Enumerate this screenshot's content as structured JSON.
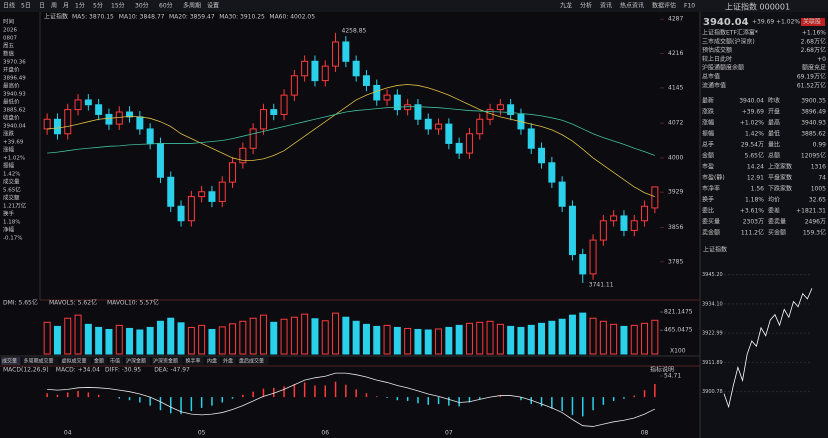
{
  "toolbar": {
    "tabs": [
      "日线",
      "5日",
      "日",
      "周",
      "月",
      "1分",
      "5分",
      "15分",
      "30分",
      "60分",
      "多周期",
      "设置"
    ],
    "right_tabs": [
      "九龙",
      "分析",
      "资讯",
      "热点资讯",
      "数据评估",
      "F10"
    ]
  },
  "left_info": {
    "items": [
      "时间",
      "2026",
      "0807",
      "周五",
      "数值",
      "3970.36",
      "开盘价",
      "3896.49",
      "最高价",
      "3940.93",
      "最低价",
      "3885.62",
      "收盘价",
      "3940.04",
      "涨跌",
      "+39.69",
      "涨幅",
      "+1.02%",
      "振幅",
      "1.42%",
      "成交量",
      "5.65亿",
      "成交额",
      "1.21万亿",
      "换手",
      "1.18%",
      "净幅",
      "-0.17%"
    ]
  },
  "chart_data": [
    {
      "type": "candlestick",
      "title": "上证指数",
      "legend": [
        "MA5: 3870.15",
        "MA10: 3848.77",
        "MA20: 3859.47",
        "MA30: 3910.25",
        "MA60: 4002.05"
      ],
      "annotations": [
        "4258.85",
        "3741.11"
      ],
      "categories": [
        null,
        null,
        "04",
        null,
        null,
        null,
        null,
        null,
        null,
        null,
        null,
        null,
        null,
        null,
        null,
        "05",
        null,
        null,
        null,
        null,
        null,
        null,
        null,
        null,
        null,
        null,
        null,
        "06",
        null,
        null,
        null,
        null,
        null,
        null,
        null,
        null,
        null,
        null,
        null,
        "07",
        null,
        null,
        null,
        null,
        null,
        null,
        null,
        null,
        null,
        null,
        null,
        null,
        null,
        null,
        null,
        null,
        null,
        null,
        "08",
        null
      ],
      "open": [
        4060,
        4080,
        4050,
        4100,
        4120,
        4110,
        4090,
        4070,
        4095,
        4085,
        4060,
        4030,
        3960,
        3900,
        3870,
        3920,
        3930,
        3910,
        3950,
        3990,
        4020,
        4060,
        4100,
        4090,
        4130,
        4170,
        4200,
        4160,
        4190,
        4240,
        4200,
        4170,
        4150,
        4120,
        4130,
        4100,
        4110,
        4080,
        4060,
        4070,
        4030,
        4010,
        4050,
        4080,
        4100,
        4110,
        4090,
        4060,
        4020,
        3990,
        3950,
        3900,
        3800,
        3760,
        3830,
        3870,
        3880,
        3850,
        3870,
        3896.49
      ],
      "high": [
        4092,
        4092,
        4112,
        4132,
        4132,
        4122,
        4102,
        4107,
        4107,
        4097,
        4072,
        4042,
        3972,
        3912,
        3932,
        3942,
        3942,
        3962,
        4002,
        4032,
        4072,
        4112,
        4112,
        4142,
        4182,
        4212,
        4212,
        4202,
        4258.85,
        4252,
        4212,
        4182,
        4162,
        4142,
        4142,
        4122,
        4122,
        4092,
        4082,
        4082,
        4042,
        4062,
        4092,
        4112,
        4122,
        4122,
        4102,
        4072,
        4032,
        4002,
        3962,
        3912,
        3812,
        3842,
        3882,
        3892,
        3892,
        3882,
        3912,
        3940.93
      ],
      "low": [
        4048,
        4038,
        4038,
        4088,
        4098,
        4078,
        4058,
        4058,
        4073,
        4048,
        4018,
        3948,
        3888,
        3858,
        3858,
        3908,
        3898,
        3898,
        3938,
        3978,
        4008,
        4048,
        4078,
        4078,
        4118,
        4158,
        4148,
        4148,
        4178,
        4188,
        4158,
        4138,
        4108,
        4108,
        4088,
        4088,
        4068,
        4048,
        4048,
        4018,
        3998,
        3998,
        4038,
        4068,
        4088,
        4078,
        4048,
        4008,
        3978,
        3938,
        3888,
        3788,
        3741.11,
        3748,
        3818,
        3858,
        3838,
        3838,
        3858,
        3885.62
      ],
      "close": [
        4080,
        4050,
        4100,
        4120,
        4110,
        4090,
        4070,
        4095,
        4085,
        4060,
        4030,
        3960,
        3900,
        3870,
        3920,
        3930,
        3910,
        3950,
        3990,
        4020,
        4060,
        4100,
        4090,
        4130,
        4170,
        4200,
        4160,
        4190,
        4240,
        4200,
        4170,
        4150,
        4120,
        4130,
        4100,
        4110,
        4080,
        4060,
        4070,
        4030,
        4010,
        4050,
        4080,
        4100,
        4110,
        4090,
        4060,
        4020,
        3990,
        3950,
        3900,
        3800,
        3760,
        3830,
        3870,
        3880,
        3850,
        3870,
        3900,
        3940.04
      ],
      "series": [
        {
          "color": "#e0c040",
          "values": [
            4060,
            4062,
            4065,
            4070,
            4075,
            4080,
            4082,
            4084,
            4086,
            4085,
            4082,
            4075,
            4065,
            4050,
            4040,
            4030,
            4020,
            4010,
            4000,
            3995,
            3995,
            3998,
            4005,
            4015,
            4030,
            4045,
            4060,
            4075,
            4090,
            4105,
            4120,
            4130,
            4138,
            4145,
            4150,
            4152,
            4150,
            4145,
            4138,
            4130,
            4120,
            4110,
            4100,
            4092,
            4085,
            4080,
            4075,
            4070,
            4065,
            4058,
            4048,
            4035,
            4018,
            4000,
            3985,
            3970,
            3955,
            3940,
            3928,
            3920
          ]
        },
        {
          "color": "#3fbf9f",
          "values": [
            4010,
            4012,
            4015,
            4018,
            4020,
            4022,
            4024,
            4025,
            4027,
            4028,
            4029,
            4030,
            4030,
            4030,
            4030,
            4032,
            4034,
            4036,
            4040,
            4045,
            4050,
            4055,
            4060,
            4065,
            4070,
            4075,
            4080,
            4085,
            4090,
            4095,
            4098,
            4100,
            4102,
            4104,
            4105,
            4106,
            4106,
            4105,
            4104,
            4102,
            4100,
            4098,
            4097,
            4096,
            4095,
            4094,
            4092,
            4090,
            4087,
            4083,
            4078,
            4070,
            4060,
            4050,
            4042,
            4035,
            4028,
            4020,
            4013,
            4005
          ]
        }
      ],
      "ylim": [
        3706,
        4302
      ],
      "yticks": [
        3785,
        3856,
        3929,
        4000,
        4072,
        4145,
        4216,
        4287
      ]
    },
    {
      "type": "volume",
      "legend": [
        "DMI: 5.65亿",
        "MAVOL5: 5.62亿",
        "MAVOL10: 5.57亿"
      ],
      "unit": "X100",
      "values": [
        620,
        540,
        700,
        760,
        580,
        520,
        480,
        560,
        500,
        470,
        520,
        640,
        700,
        610,
        520,
        560,
        480,
        530,
        590,
        640,
        700,
        760,
        620,
        680,
        720,
        780,
        690,
        650,
        800,
        720,
        640,
        580,
        540,
        560,
        520,
        500,
        480,
        470,
        490,
        520,
        560,
        600,
        620,
        640,
        580,
        540,
        520,
        560,
        600,
        640,
        680,
        760,
        800,
        700,
        640,
        580,
        540,
        560,
        600,
        660
      ],
      "ylim": [
        0,
        900
      ],
      "yticks": [
        {
          "value": 465.0475,
          "label": "465.0475"
        },
        {
          "value": 821.1475,
          "label": "821.1475"
        }
      ]
    },
    {
      "type": "macd",
      "tabs": [
        "成交量",
        "多周期成交量",
        "虚拟成交量",
        "金额",
        "市值",
        "沪深金额",
        "沪深资金额",
        "换手率",
        "内盘",
        "外盘",
        "盘后成交量"
      ],
      "legend": [
        "MACD(12,26,9)",
        "MACD: +34.04",
        "DIFF: -30.95",
        "DEA: -47.97"
      ],
      "note": "指标说明",
      "values": [
        10,
        6,
        12,
        16,
        12,
        6,
        0,
        -4,
        -8,
        -14,
        -22,
        -34,
        -42,
        -44,
        -36,
        -28,
        -22,
        -14,
        -4,
        6,
        14,
        22,
        24,
        28,
        34,
        38,
        30,
        30,
        40,
        32,
        20,
        10,
        2,
        -2,
        -8,
        -10,
        -16,
        -20,
        -18,
        -22,
        -24,
        -14,
        -6,
        0,
        4,
        0,
        -8,
        -18,
        -24,
        -30,
        -36,
        -46,
        -50,
        -34,
        -20,
        -10,
        -4,
        4,
        18,
        34.04
      ],
      "series": [
        {
          "color": "#e8e8e8",
          "values": [
            20,
            18,
            20,
            24,
            25,
            24,
            22,
            18,
            14,
            8,
            0,
            -12,
            -26,
            -38,
            -44,
            -46,
            -44,
            -40,
            -32,
            -22,
            -10,
            2,
            10,
            20,
            32,
            44,
            50,
            54,
            62,
            62,
            58,
            52,
            44,
            38,
            30,
            24,
            16,
            8,
            2,
            -6,
            -14,
            -12,
            -6,
            0,
            4,
            4,
            0,
            -8,
            -18,
            -28,
            -40,
            -58,
            -74,
            -76,
            -70,
            -64,
            -60,
            -54,
            -44,
            -30.95
          ]
        }
      ],
      "ylim": [
        -80,
        65
      ],
      "yticks": [
        54.71
      ]
    }
  ],
  "right_panel": {
    "title": "上证指数 000001",
    "price": "3940.04",
    "change": "+39.69",
    "pct": "+1.02%",
    "tag": "关联股",
    "info_rows": [
      [
        "上证指数ETF汇添富*",
        "+1.16%"
      ],
      [
        "三市成交额(沪深京)",
        "2.68万亿"
      ],
      [
        "预估成交额",
        "2.68万亿"
      ],
      [
        "较上日此时",
        "+0"
      ],
      [
        "沪股通额度余额",
        "额度充足"
      ],
      [
        "总市值",
        "69.19万亿"
      ],
      [
        "流通市值",
        "61.52万亿"
      ]
    ],
    "stats": [
      [
        "最新",
        "3940.04",
        "昨收",
        "3900.35"
      ],
      [
        "涨跌",
        "+39.69",
        "开盘",
        "3896.49"
      ],
      [
        "涨幅",
        "+1.02%",
        "最高",
        "3940.93"
      ],
      [
        "振幅",
        "1.42%",
        "最低",
        "3885.62"
      ],
      [
        "总手",
        "29.54万",
        "量比",
        "0.99"
      ],
      [
        "金额",
        "5.65亿",
        "总额",
        "12095亿"
      ],
      [
        "市盈",
        "14.24",
        "上涨家数",
        "1316"
      ],
      [
        "市盈(静)",
        "12.91",
        "平盘家数",
        "74"
      ],
      [
        "市净率",
        "1.56",
        "下跌家数",
        "1005"
      ],
      [
        "换手",
        "1.18%",
        "均价",
        "32.65"
      ],
      [
        "委比",
        "+3.61%",
        "委差",
        "+1821.31"
      ],
      [
        "委买量",
        "2303万",
        "委卖量",
        "2496万"
      ],
      [
        "卖金额",
        "111.2亿",
        "买金额",
        "159.3亿"
      ]
    ],
    "mini_chart": {
      "title": "上证指数",
      "values": [
        3900,
        3895,
        3903,
        3910,
        3905,
        3915,
        3920,
        3918,
        3925,
        3922,
        3928,
        3930,
        3926,
        3932,
        3929,
        3935,
        3933,
        3938,
        3936,
        3940.04
      ],
      "ylim": [
        3890,
        3950
      ],
      "yticks": [
        {
          "value": 3900.78,
          "label": "3900.78"
        },
        {
          "value": 3911.89,
          "label": "3911.89"
        },
        {
          "value": 3922.99,
          "label": "3922.99"
        },
        {
          "value": 3934.1,
          "label": "3934.10"
        },
        {
          "value": 3945.2,
          "label": "3945.20"
        }
      ]
    }
  }
}
